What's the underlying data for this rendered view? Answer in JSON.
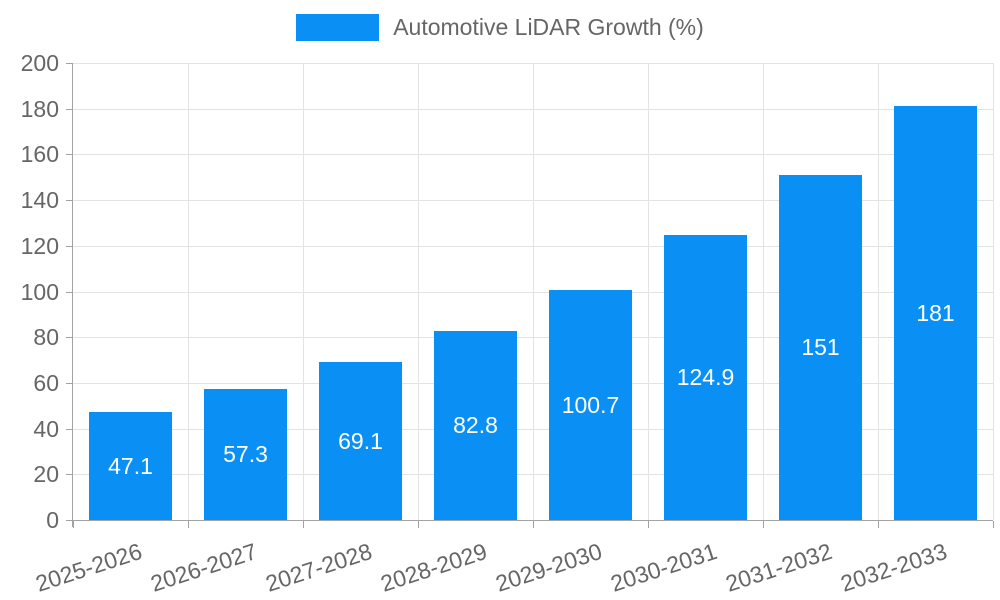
{
  "legend": {
    "label": "Automotive LiDAR Growth (%)"
  },
  "colors": {
    "bar": "#0a90f5",
    "grid": "#e3e3e3",
    "axis": "#a3a3a3",
    "tick_text": "#666666",
    "bar_label_text": "#ffffff",
    "background": "#ffffff"
  },
  "chart_data": {
    "type": "bar",
    "title": "Automotive LiDAR Growth (%)",
    "categories": [
      "2025-2026",
      "2026-2027",
      "2027-2028",
      "2028-2029",
      "2029-2030",
      "2030-2031",
      "2031-2032",
      "2032-2033"
    ],
    "values": [
      47.1,
      57.3,
      69.1,
      82.8,
      100.7,
      124.9,
      151,
      181
    ],
    "value_labels": [
      "47.1",
      "57.3",
      "69.1",
      "82.8",
      "100.7",
      "124.9",
      "151",
      "181"
    ],
    "xlabel": "",
    "ylabel": "",
    "ylim": [
      0,
      200
    ],
    "ytick_step": 20,
    "ytick_labels": [
      "0",
      "20",
      "40",
      "60",
      "80",
      "100",
      "120",
      "140",
      "160",
      "180",
      "200"
    ],
    "grid": "horizontal and vertical light gray gridlines",
    "legend_position": "top center",
    "bar_value_labels_inside": "centered, white",
    "x_label_rotation_deg": -18
  }
}
